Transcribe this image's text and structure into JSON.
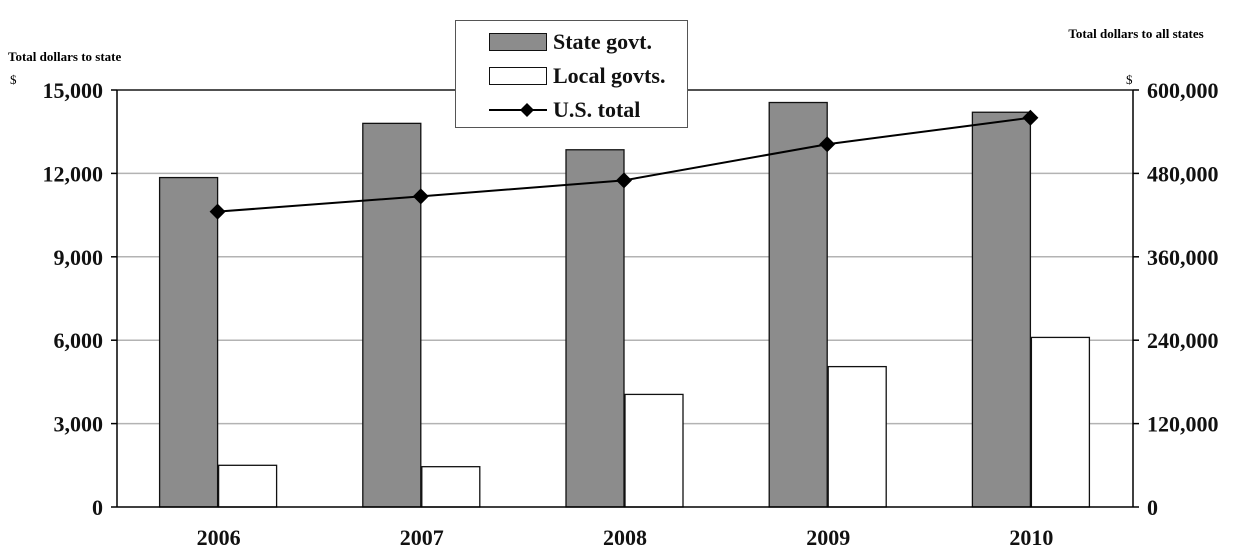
{
  "chart_data": {
    "type": "bar",
    "categories": [
      "2006",
      "2007",
      "2008",
      "2009",
      "2010"
    ],
    "series": [
      {
        "name": "State govt.",
        "axis": "left",
        "color": "#8c8c8c",
        "values": [
          11850,
          13800,
          12850,
          14550,
          14200
        ]
      },
      {
        "name": "Local govts.",
        "axis": "left",
        "color": "#ffffff",
        "values": [
          1500,
          1450,
          4050,
          5050,
          6100
        ]
      },
      {
        "name": "U.S. total",
        "axis": "right",
        "type": "line",
        "marker": "diamond",
        "color": "#000000",
        "values": [
          425000,
          447000,
          470000,
          522000,
          560000
        ]
      }
    ],
    "ylabel_left": "Total dollars to state",
    "ylabel_right": "Total dollars to all states",
    "currency_symbol": "$",
    "ylim_left": [
      0,
      15000
    ],
    "ylim_right": [
      0,
      600000
    ],
    "yticks_left": [
      "0",
      "3,000",
      "6,000",
      "9,000",
      "12,000",
      "15,000"
    ],
    "yticks_right": [
      "0",
      "120,000",
      "240,000",
      "360,000",
      "480,000",
      "600,000"
    ],
    "grid": true,
    "legend_position": "top-center"
  }
}
